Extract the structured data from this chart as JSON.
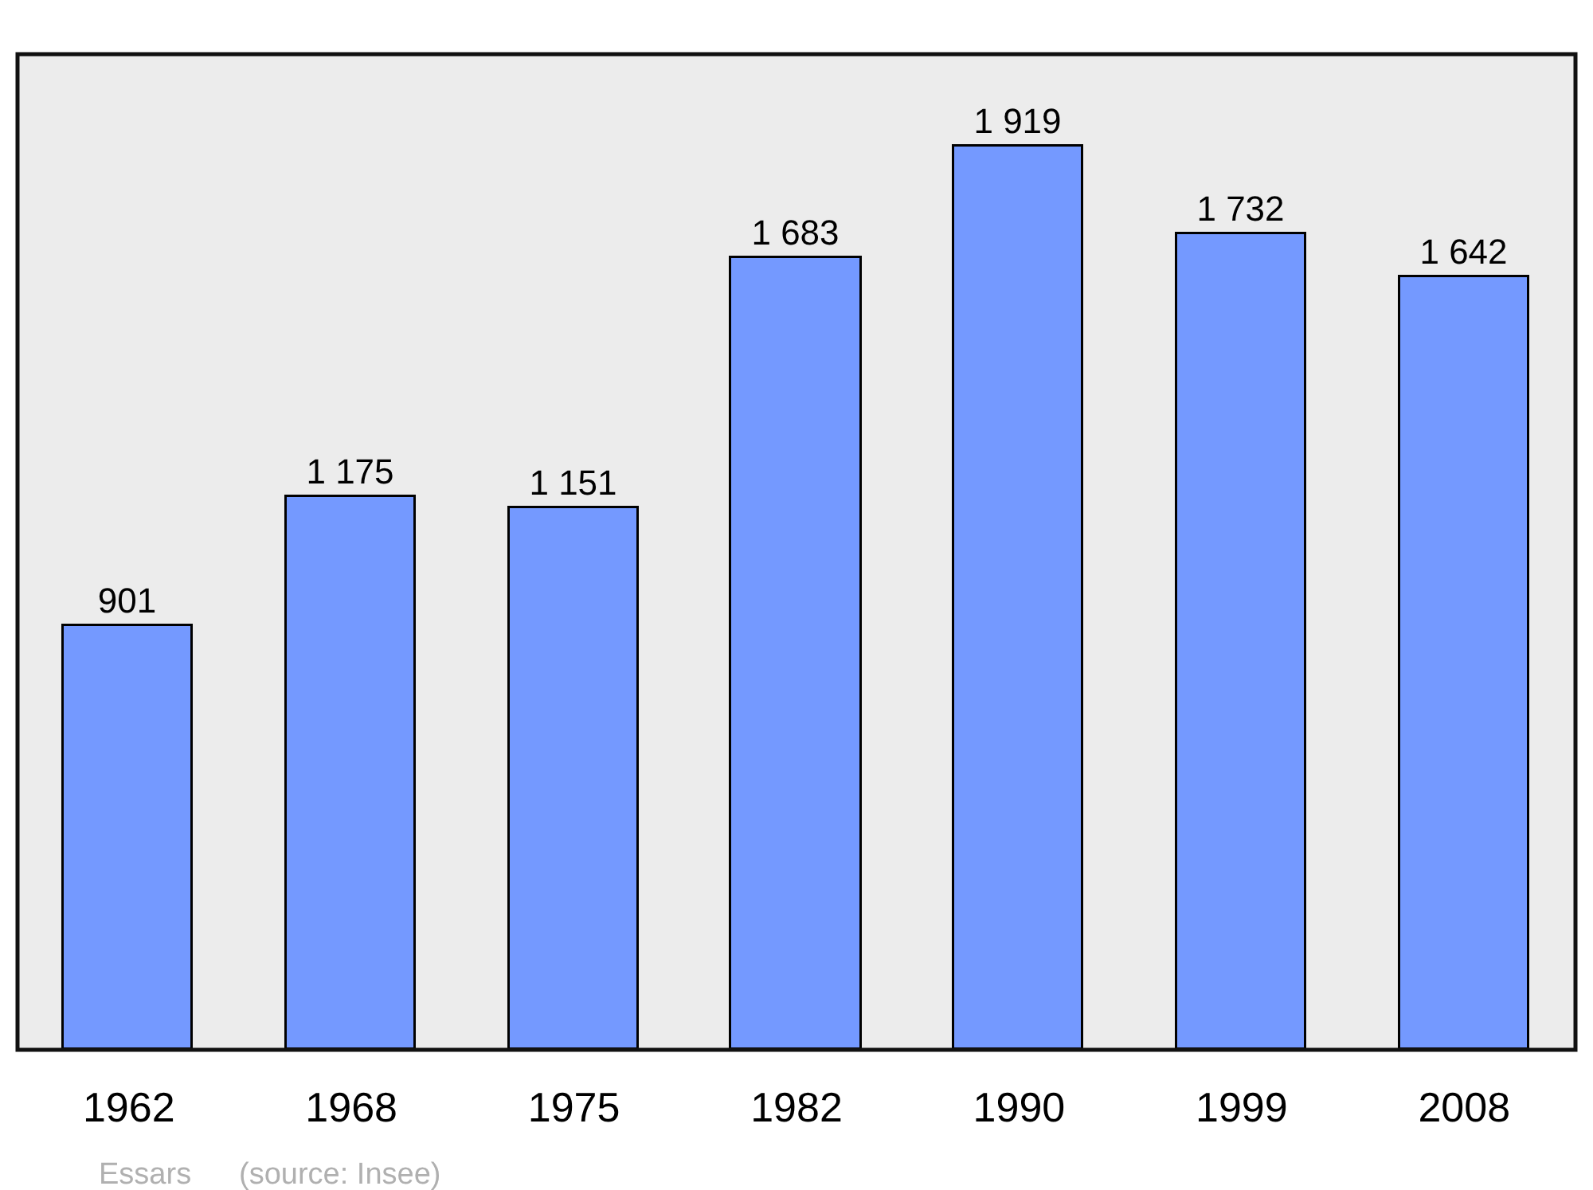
{
  "chart_data": {
    "type": "bar",
    "categories": [
      "1962",
      "1968",
      "1975",
      "1982",
      "1990",
      "1999",
      "2008"
    ],
    "values": [
      901,
      1175,
      1151,
      1683,
      1919,
      1732,
      1642
    ],
    "value_labels": [
      "901",
      "1 175",
      "1 151",
      "1 683",
      "1 919",
      "1 732",
      "1 642"
    ],
    "color": "#7499ff",
    "ylim": [
      0,
      2115
    ],
    "grid": false,
    "legend": false,
    "tick_labels": "x",
    "annotations": [
      "Essars",
      "(source: Insee)"
    ]
  }
}
